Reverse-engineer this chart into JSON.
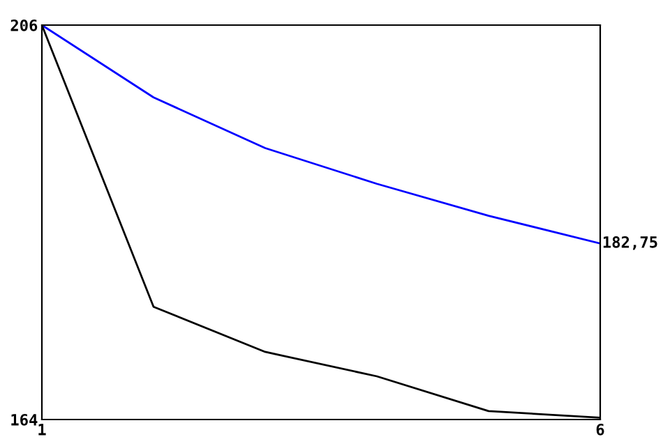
{
  "chart_data": {
    "type": "line",
    "x": [
      1,
      2,
      3,
      4,
      5,
      6
    ],
    "series": [
      {
        "color": "#0000ff",
        "values": [
          206,
          198.3,
          192.9,
          189.1,
          185.7,
          182.75
        ],
        "value_labels": [
          null,
          null,
          null,
          null,
          null,
          "182,75"
        ]
      },
      {
        "color": "#000000",
        "values": [
          206,
          176.0,
          171.2,
          168.6,
          164.9,
          164.2
        ]
      }
    ],
    "xlim": [
      1,
      6
    ],
    "xticks": [
      1,
      6
    ],
    "ylim": [
      164,
      206
    ],
    "yticks": [
      164,
      206
    ],
    "grid": false,
    "legend": false,
    "marker": "none",
    "line_style": "solid"
  }
}
